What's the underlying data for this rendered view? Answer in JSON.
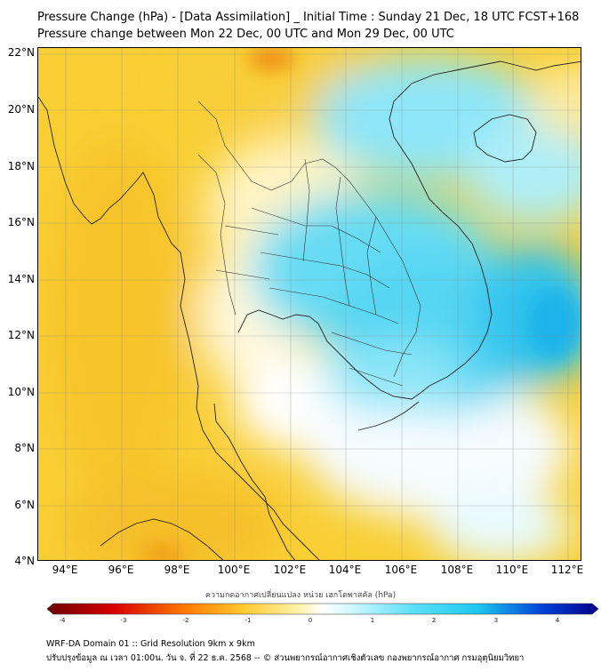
{
  "title_line1": "Pressure Change (hPa) - [Data Assimilation] _ Initial Time : Sunday 21 Dec, 18 UTC FCST+168",
  "title_line2": "Pressure change between Mon 22 Dec, 00 UTC and Mon 29 Dec, 00 UTC",
  "lat_labels": [
    "22°N",
    "20°N",
    "18°N",
    "16°N",
    "14°N",
    "12°N",
    "10°N",
    "8°N",
    "6°N",
    "4°N"
  ],
  "lon_labels": [
    "94°E",
    "96°E",
    "98°E",
    "100°E",
    "102°E",
    "104°E",
    "106°E",
    "108°E",
    "110°E",
    "112°E"
  ],
  "colorbar": {
    "title": "ความกดอากาศเปลี่ยนแปลง หน่วย เฮกโตพาสคัล (hPa)",
    "tick_labels": [
      "-4",
      "-3",
      "-2",
      "-1",
      "0",
      "1",
      "2",
      "3",
      "4"
    ],
    "range": [
      -4,
      4
    ],
    "colors": {
      "min": "#6b0000",
      "negative": "#ff2a00",
      "weak_negative": "#ffd24a",
      "zero": "#ffffff",
      "weak_positive": "#8ff0ff",
      "positive": "#1ec8f0",
      "max": "#000088"
    }
  },
  "footer_line1": "WRF-DA Domain 01 :: Grid Resolution 9km x 9km",
  "footer_line2": "ปรับปรุงข้อมูล ณ เวลา 01:00น. วัน จ. ที่ 22 ธ.ค. 2568 -- © ส่วนพยากรณ์อากาศเชิงตัวเลข กองพยากรณ์อากาศ กรมอุตุนิยมวิทยา"
}
